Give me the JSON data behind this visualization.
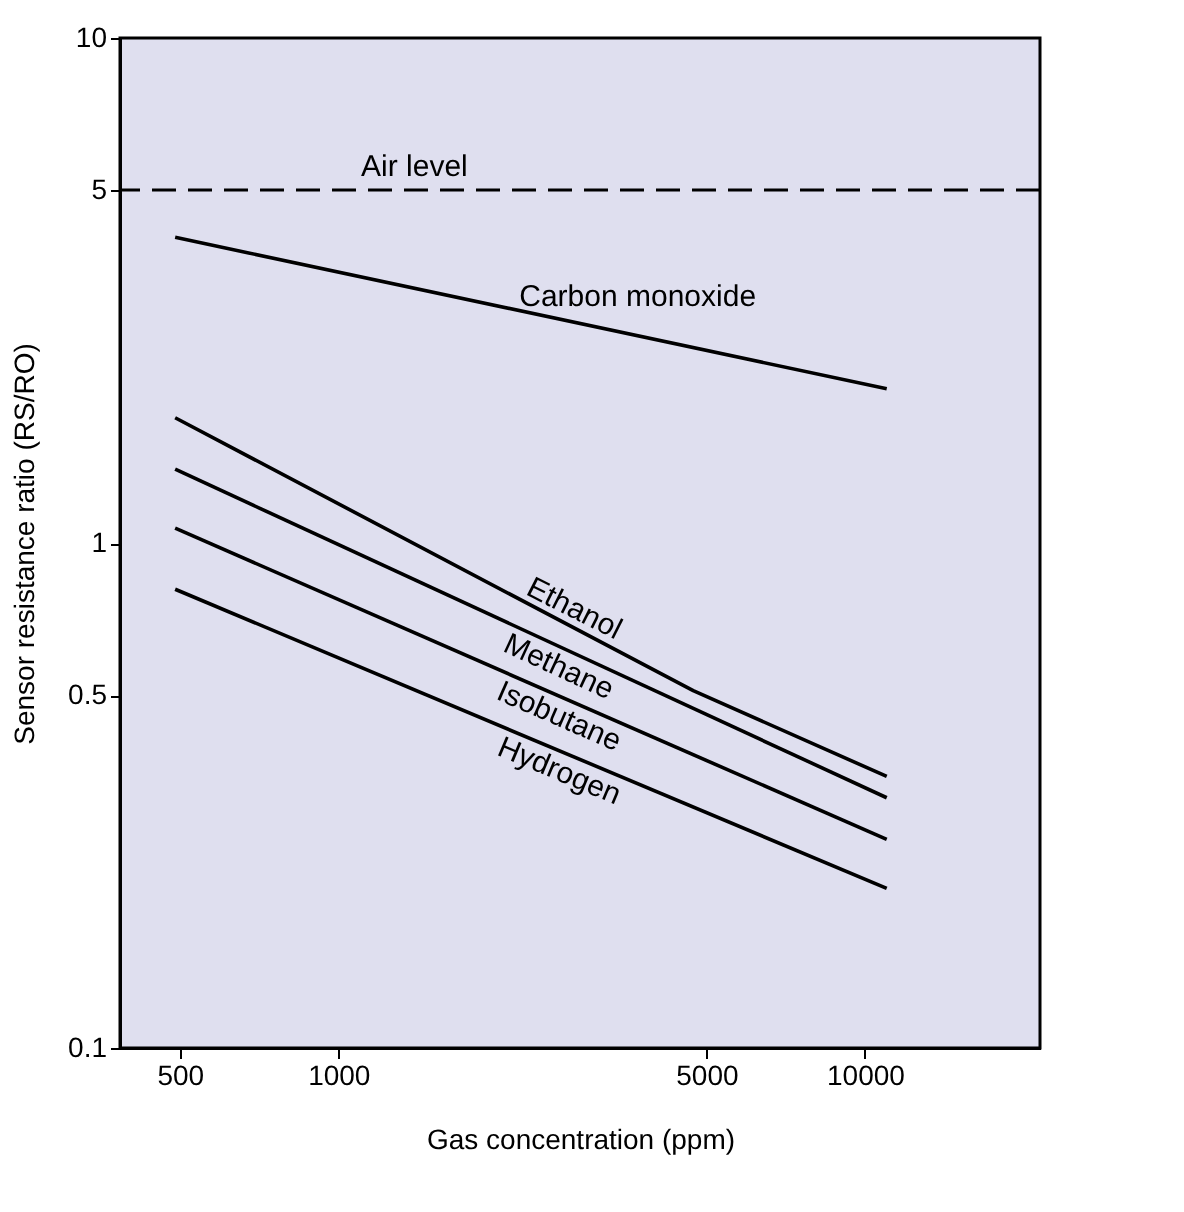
{
  "chart_data": {
    "type": "line",
    "xlabel": "Gas concentration (ppm)",
    "ylabel": "Sensor resistance ratio (RS/RO)",
    "log": "xy",
    "xlim": [
      385,
      21500
    ],
    "xticks": [
      500,
      1000,
      5000,
      10000
    ],
    "ylim": [
      0.1,
      10
    ],
    "yticks": [
      0.1,
      0.5,
      1,
      5,
      10
    ],
    "grid": false,
    "marker": "none",
    "line_style": "solid",
    "series": [
      {
        "name": "Carbon monoxide",
        "color": "#000000",
        "x": [
          490,
          11000
        ],
        "values": [
          4.03,
          2.02
        ]
      },
      {
        "name": "Ethanol",
        "color": "#000000",
        "x": [
          490,
          4720,
          11000
        ],
        "values": [
          1.77,
          0.51,
          0.345
        ]
      },
      {
        "name": "Methane",
        "color": "#000000",
        "x": [
          490,
          11000
        ],
        "values": [
          1.4,
          0.313
        ]
      },
      {
        "name": "Isobutane",
        "color": "#000000",
        "x": [
          490,
          11000
        ],
        "values": [
          1.07,
          0.259
        ]
      },
      {
        "name": "Hydrogen",
        "color": "#000000",
        "x": [
          490,
          11000
        ],
        "values": [
          0.81,
          0.207
        ]
      }
    ],
    "ref_lines": [
      {
        "axis": "y",
        "value": 5,
        "label": "Air level",
        "color": "#000000",
        "line_style": "dashed"
      }
    ]
  }
}
